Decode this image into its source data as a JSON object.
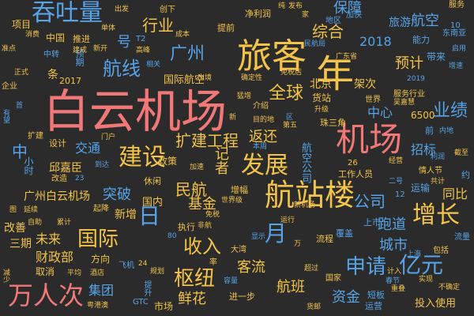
{
  "background": "#2b2b2b",
  "words": [
    {
      "text": "白云机场",
      "color": "#f07878"
    },
    {
      "text": "旅客",
      "color": "#f3c34a"
    },
    {
      "text": "机场",
      "color": "#f07878"
    },
    {
      "text": "航站楼",
      "color": "#f3c34a"
    },
    {
      "text": "年",
      "color": "#f3c34a"
    },
    {
      "text": "吞吐量",
      "color": "#57a3e8"
    },
    {
      "text": "万人次",
      "color": "#f07878"
    },
    {
      "text": "建设",
      "color": "#f3c34a"
    },
    {
      "text": "发展",
      "color": "#f3c34a"
    },
    {
      "text": "增长",
      "color": "#f3c34a"
    },
    {
      "text": "国际",
      "color": "#f3c34a"
    },
    {
      "text": "枢纽",
      "color": "#f3c34a"
    },
    {
      "text": "亿元",
      "color": "#57a3e8"
    },
    {
      "text": "航线",
      "color": "#57a3e8"
    },
    {
      "text": "广州",
      "color": "#57a3e8"
    },
    {
      "text": "日",
      "color": "#57a3e8"
    },
    {
      "text": "月",
      "color": "#57a3e8"
    },
    {
      "text": "申请",
      "color": "#57a3e8"
    },
    {
      "text": "全球",
      "color": "#f3c34a"
    },
    {
      "text": "业绩",
      "color": "#57a3e8"
    },
    {
      "text": "扩建工程",
      "color": "#f3c34a"
    },
    {
      "text": "收入",
      "color": "#f3c34a"
    },
    {
      "text": "公司",
      "color": "#57a3e8"
    },
    {
      "text": "民航",
      "color": "#f3c34a"
    },
    {
      "text": "行业",
      "color": "#f3c34a"
    },
    {
      "text": "综合",
      "color": "#f3c34a"
    },
    {
      "text": "保障",
      "color": "#57a3e8"
    },
    {
      "text": "航空",
      "color": "#57a3e8"
    },
    {
      "text": "预计",
      "color": "#f3c34a"
    },
    {
      "text": "号",
      "color": "#57a3e8"
    },
    {
      "text": "中",
      "color": "#57a3e8"
    },
    {
      "text": "突破",
      "color": "#57a3e8"
    },
    {
      "text": "鲜花",
      "color": "#f3c34a"
    },
    {
      "text": "客流",
      "color": "#f3c34a"
    },
    {
      "text": "集团",
      "color": "#57a3e8"
    },
    {
      "text": "城市",
      "color": "#57a3e8"
    },
    {
      "text": "跑道",
      "color": "#57a3e8"
    },
    {
      "text": "资金",
      "color": "#57a3e8"
    },
    {
      "text": "航班",
      "color": "#f3c34a"
    },
    {
      "text": "返还",
      "color": "#f3c34a"
    },
    {
      "text": "基金",
      "color": "#f3c34a"
    },
    {
      "text": "记者",
      "color": "#f3c34a"
    },
    {
      "text": "未来",
      "color": "#f3c34a"
    },
    {
      "text": "财政部",
      "color": "#f3c34a"
    },
    {
      "text": "交通",
      "color": "#57a3e8"
    },
    {
      "text": "广州白云机场",
      "color": "#f3c34a"
    },
    {
      "text": "国际航空",
      "color": "#f3c34a"
    },
    {
      "text": "2018",
      "color": "#57a3e8"
    },
    {
      "text": "中心",
      "color": "#57a3e8"
    },
    {
      "text": "招标",
      "color": "#57a3e8"
    },
    {
      "text": "同比",
      "color": "#f3c34a"
    },
    {
      "text": "北京",
      "color": "#f3c34a"
    },
    {
      "text": "货站",
      "color": "#f3c34a"
    },
    {
      "text": "架次",
      "color": "#f3c34a"
    },
    {
      "text": "6500",
      "color": "#f3c34a"
    },
    {
      "text": "2017",
      "color": "#f3c34a"
    },
    {
      "text": "条",
      "color": "#f3c34a"
    },
    {
      "text": "旅游",
      "color": "#57a3e8"
    },
    {
      "text": "三期",
      "color": "#f3c34a"
    },
    {
      "text": "新增",
      "color": "#f3c34a"
    },
    {
      "text": "国内",
      "color": "#f3c34a"
    },
    {
      "text": "政策",
      "color": "#f3c34a"
    },
    {
      "text": "邱嘉臣",
      "color": "#f3c34a"
    },
    {
      "text": "投入使用",
      "color": "#f3c34a"
    },
    {
      "text": "进一步",
      "color": "#f3c34a"
    },
    {
      "text": "市场",
      "color": "#f3c34a"
    },
    {
      "text": "改善",
      "color": "#f3c34a"
    },
    {
      "text": "取消",
      "color": "#f3c34a"
    },
    {
      "text": "方向",
      "color": "#f3c34a"
    },
    {
      "text": "运输",
      "color": "#57a3e8"
    },
    {
      "text": "工作人员",
      "color": "#f3c34a"
    },
    {
      "text": "执行",
      "color": "#f3c34a"
    },
    {
      "text": "上市",
      "color": "#57a3e8"
    },
    {
      "text": "流程",
      "color": "#f3c34a"
    },
    {
      "text": "覆盖",
      "color": "#57a3e8"
    },
    {
      "text": "短板",
      "color": "#57a3e8"
    },
    {
      "text": "运营",
      "color": "#57a3e8"
    },
    {
      "text": "设计",
      "color": "#f3c34a"
    },
    {
      "text": "项目",
      "color": "#f3c34a"
    },
    {
      "text": "中国",
      "color": "#f3c34a"
    },
    {
      "text": "推进",
      "color": "#f3c34a"
    },
    {
      "text": "T2",
      "color": "#57a3e8"
    },
    {
      "text": "消费",
      "color": "#f3c34a"
    },
    {
      "text": "单体",
      "color": "#f3c34a"
    },
    {
      "text": "出发",
      "color": "#f3c34a"
    },
    {
      "text": "创下",
      "color": "#f3c34a"
    },
    {
      "text": "提前",
      "color": "#f3c34a"
    },
    {
      "text": "净利润",
      "color": "#f3c34a"
    },
    {
      "text": "纯",
      "color": "#f3c34a"
    },
    {
      "text": "发布",
      "color": "#f3c34a"
    },
    {
      "text": "家",
      "color": "#f3c34a"
    },
    {
      "text": "地区",
      "color": "#57a3e8"
    },
    {
      "text": "加快",
      "color": "#57a3e8"
    },
    {
      "text": "服务",
      "color": "#f3c34a"
    },
    {
      "text": "10",
      "color": "#57a3e8"
    },
    {
      "text": "东南亚",
      "color": "#57a3e8"
    },
    {
      "text": "能力",
      "color": "#57a3e8"
    },
    {
      "text": "民航局",
      "color": "#57a3e8"
    },
    {
      "text": "广东省",
      "color": "#f3c34a"
    },
    {
      "text": "带来",
      "color": "#57a3e8"
    },
    {
      "text": "启用",
      "color": "#57a3e8"
    },
    {
      "text": "2019",
      "color": "#57a3e8"
    },
    {
      "text": "增速",
      "color": "#57a3e8"
    },
    {
      "text": "服务行业",
      "color": "#f3c34a"
    },
    {
      "text": "吴嘉慧",
      "color": "#f3c34a"
    },
    {
      "text": "世界",
      "color": "#f3c34a"
    },
    {
      "text": "前",
      "color": "#57a3e8"
    },
    {
      "text": "内地",
      "color": "#57a3e8"
    },
    {
      "text": "不确定",
      "color": "#f3c34a"
    },
    {
      "text": "门户",
      "color": "#f3c34a"
    },
    {
      "text": "航空公司",
      "color": "#57a3e8"
    },
    {
      "text": "珠三角",
      "color": "#f3c34a"
    },
    {
      "text": "介绍",
      "color": "#f3c34a"
    },
    {
      "text": "目的地",
      "color": "#f3c34a"
    },
    {
      "text": "本周",
      "color": "#57a3e8"
    },
    {
      "text": "增幅",
      "color": "#f3c34a"
    },
    {
      "text": "休闲",
      "color": "#f3c34a"
    },
    {
      "text": "起降",
      "color": "#f3c34a"
    },
    {
      "text": "上海",
      "color": "#57a3e8"
    },
    {
      "text": "国家",
      "color": "#f3c34a"
    },
    {
      "text": "超过",
      "color": "#f3c34a"
    },
    {
      "text": "包括",
      "color": "#f3c34a"
    },
    {
      "text": "流量",
      "color": "#57a3e8"
    },
    {
      "text": "重叠",
      "color": "#f3c34a"
    },
    {
      "text": "春节",
      "color": "#57a3e8"
    },
    {
      "text": "加速",
      "color": "#f3c34a"
    },
    {
      "text": "GTC",
      "color": "#57a3e8"
    },
    {
      "text": "规划",
      "color": "#f3c34a"
    },
    {
      "text": "大湾",
      "color": "#f3c34a"
    },
    {
      "text": "显示",
      "color": "#57a3e8"
    },
    {
      "text": "免税",
      "color": "#f3c34a"
    },
    {
      "text": "确定性",
      "color": "#f3c34a"
    },
    {
      "text": "货邮",
      "color": "#f3c34a"
    },
    {
      "text": "粤港澳",
      "color": "#f3c34a"
    },
    {
      "text": "平均",
      "color": "#f3c34a"
    },
    {
      "text": "酒店",
      "color": "#f3c34a"
    },
    {
      "text": "飞机",
      "color": "#57a3e8"
    },
    {
      "text": "提升",
      "color": "#57a3e8"
    },
    {
      "text": "容量",
      "color": "#57a3e8"
    },
    {
      "text": "率",
      "color": "#f3c34a"
    },
    {
      "text": "新机场",
      "color": "#f3c34a"
    },
    {
      "text": "运行",
      "color": "#f3c34a"
    },
    {
      "text": "自助",
      "color": "#f3c34a"
    },
    {
      "text": "累计",
      "color": "#f3c34a"
    },
    {
      "text": "延续",
      "color": "#f3c34a"
    },
    {
      "text": "二号",
      "color": "#57a3e8"
    },
    {
      "text": "计入",
      "color": "#f3c34a"
    },
    {
      "text": "实现",
      "color": "#f3c34a"
    },
    {
      "text": "中转",
      "color": "#57a3e8"
    },
    {
      "text": "准点",
      "color": "#f3c34a"
    },
    {
      "text": "企业",
      "color": "#f3c34a"
    },
    {
      "text": "正式",
      "color": "#f3c34a"
    },
    {
      "text": "预期",
      "color": "#57a3e8"
    },
    {
      "text": "建成",
      "color": "#f3c34a"
    },
    {
      "text": "新开",
      "color": "#f3c34a"
    },
    {
      "text": "高峰",
      "color": "#f3c34a"
    },
    {
      "text": "相关",
      "color": "#57a3e8"
    },
    {
      "text": "出境",
      "color": "#f3c34a"
    },
    {
      "text": "免税店",
      "color": "#f3c34a"
    },
    {
      "text": "截至",
      "color": "#f3c34a"
    },
    {
      "text": "情人节",
      "color": "#f3c34a"
    },
    {
      "text": "经营",
      "color": "#f3c34a"
    },
    {
      "text": "共计",
      "color": "#f3c34a"
    },
    {
      "text": "约",
      "color": "#57a3e8"
    },
    {
      "text": "小时",
      "color": "#57a3e8"
    },
    {
      "text": "改造",
      "color": "#f3c34a"
    },
    {
      "text": "23",
      "color": "#57a3e8"
    },
    {
      "text": "26",
      "color": "#f3c34a"
    },
    {
      "text": "12",
      "color": "#57a3e8"
    },
    {
      "text": "80",
      "color": "#57a3e8"
    },
    {
      "text": "24",
      "color": "#f3c34a"
    },
    {
      "text": "到达",
      "color": "#57a3e8"
    },
    {
      "text": "有望",
      "color": "#57a3e8"
    },
    {
      "text": "扩建",
      "color": "#f3c34a"
    },
    {
      "text": "首",
      "color": "#57a3e8"
    },
    {
      "text": "升级",
      "color": "#f3c34a"
    },
    {
      "text": "非航",
      "color": "#f3c34a"
    },
    {
      "text": "成本",
      "color": "#f3c34a"
    },
    {
      "text": "猛增",
      "color": "#f3c34a"
    },
    {
      "text": "新",
      "color": "#f3c34a"
    },
    {
      "text": "区",
      "color": "#57a3e8"
    },
    {
      "text": "第五",
      "color": "#f3c34a"
    },
    {
      "text": "利润",
      "color": "#57a3e8"
    },
    {
      "text": "世界级",
      "color": "#f3c34a"
    },
    {
      "text": "万",
      "color": "#f3c34a"
    },
    {
      "text": "减少",
      "color": "#f3c34a"
    },
    {
      "text": "图",
      "color": "#f3c34a"
    }
  ]
}
